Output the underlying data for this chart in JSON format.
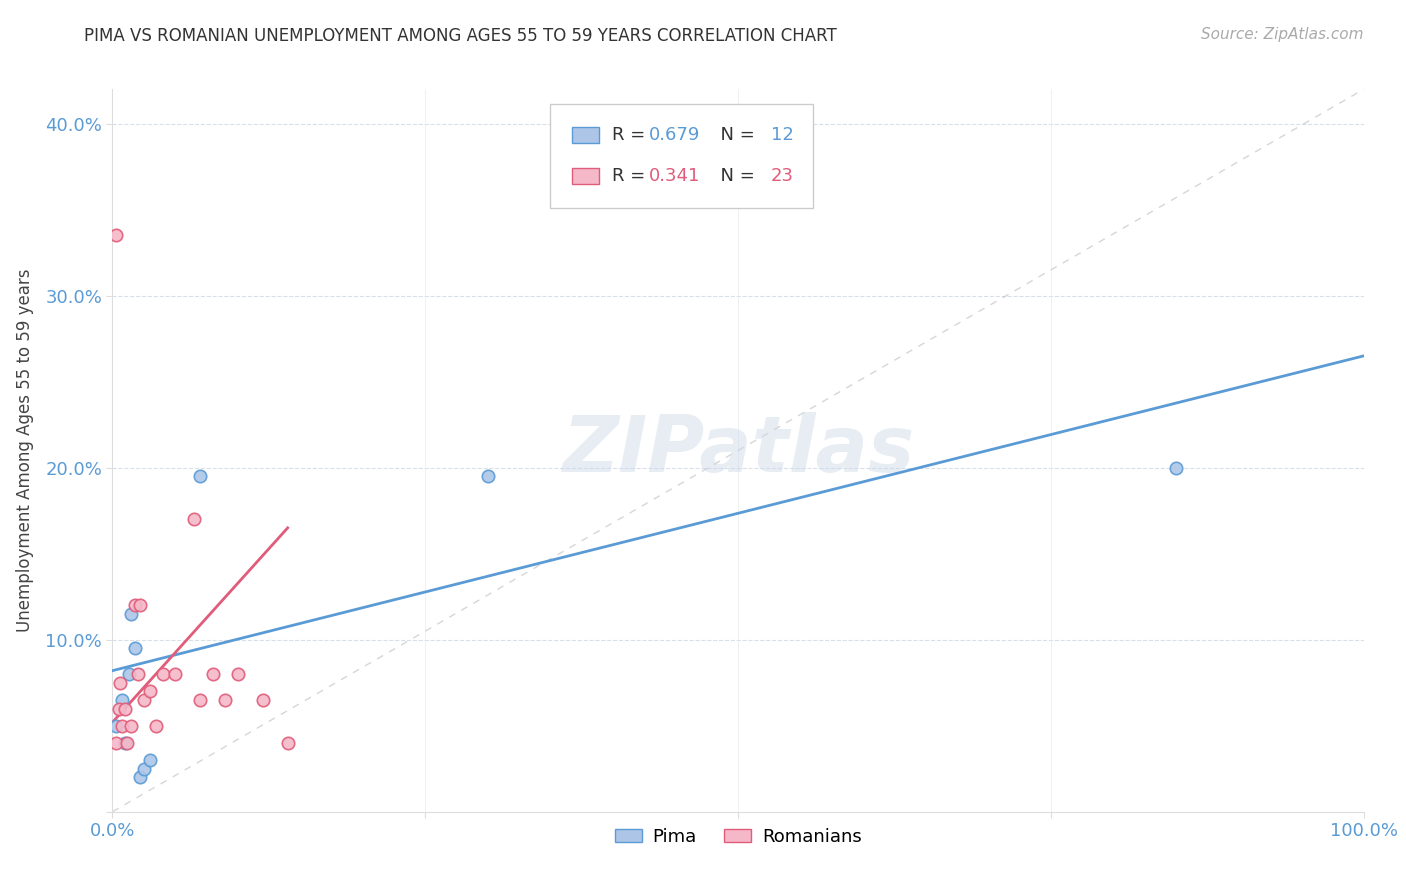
{
  "title": "PIMA VS ROMANIAN UNEMPLOYMENT AMONG AGES 55 TO 59 YEARS CORRELATION CHART",
  "source": "Source: ZipAtlas.com",
  "ylabel": "Unemployment Among Ages 55 to 59 years",
  "xlim": [
    0,
    1.0
  ],
  "ylim": [
    0,
    0.42
  ],
  "pima_color": "#adc6e8",
  "pima_edge_color": "#5b9bd5",
  "rom_color": "#f4b8c8",
  "rom_edge_color": "#e05c7a",
  "pima_line_color": "#5b9bd5",
  "rom_line_color": "#e05c7a",
  "ref_line_color": "#bbbbbb",
  "tick_color": "#5b9bd5",
  "background_color": "#ffffff",
  "watermark": "ZIPatlas",
  "legend_r_pima": "0.679",
  "legend_n_pima": "12",
  "legend_r_rom": "0.341",
  "legend_n_rom": "23",
  "pima_x": [
    0.003,
    0.008,
    0.01,
    0.013,
    0.015,
    0.018,
    0.022,
    0.025,
    0.03,
    0.07,
    0.85,
    0.3
  ],
  "pima_y": [
    0.05,
    0.065,
    0.04,
    0.08,
    0.115,
    0.095,
    0.02,
    0.025,
    0.03,
    0.195,
    0.2,
    0.195
  ],
  "rom_x": [
    0.003,
    0.005,
    0.008,
    0.01,
    0.012,
    0.015,
    0.018,
    0.02,
    0.022,
    0.025,
    0.03,
    0.035,
    0.04,
    0.05,
    0.065,
    0.07,
    0.08,
    0.09,
    0.1,
    0.12,
    0.14,
    0.003,
    0.006
  ],
  "rom_y": [
    0.04,
    0.06,
    0.05,
    0.06,
    0.04,
    0.05,
    0.12,
    0.08,
    0.12,
    0.065,
    0.07,
    0.05,
    0.08,
    0.08,
    0.17,
    0.065,
    0.08,
    0.065,
    0.08,
    0.065,
    0.04,
    0.335,
    0.075
  ],
  "pima_line_x0": 0.0,
  "pima_line_y0": 0.082,
  "pima_line_x1": 1.0,
  "pima_line_y1": 0.265,
  "rom_line_x0": 0.0,
  "rom_line_y0": 0.052,
  "rom_line_x1": 0.14,
  "rom_line_y1": 0.165
}
